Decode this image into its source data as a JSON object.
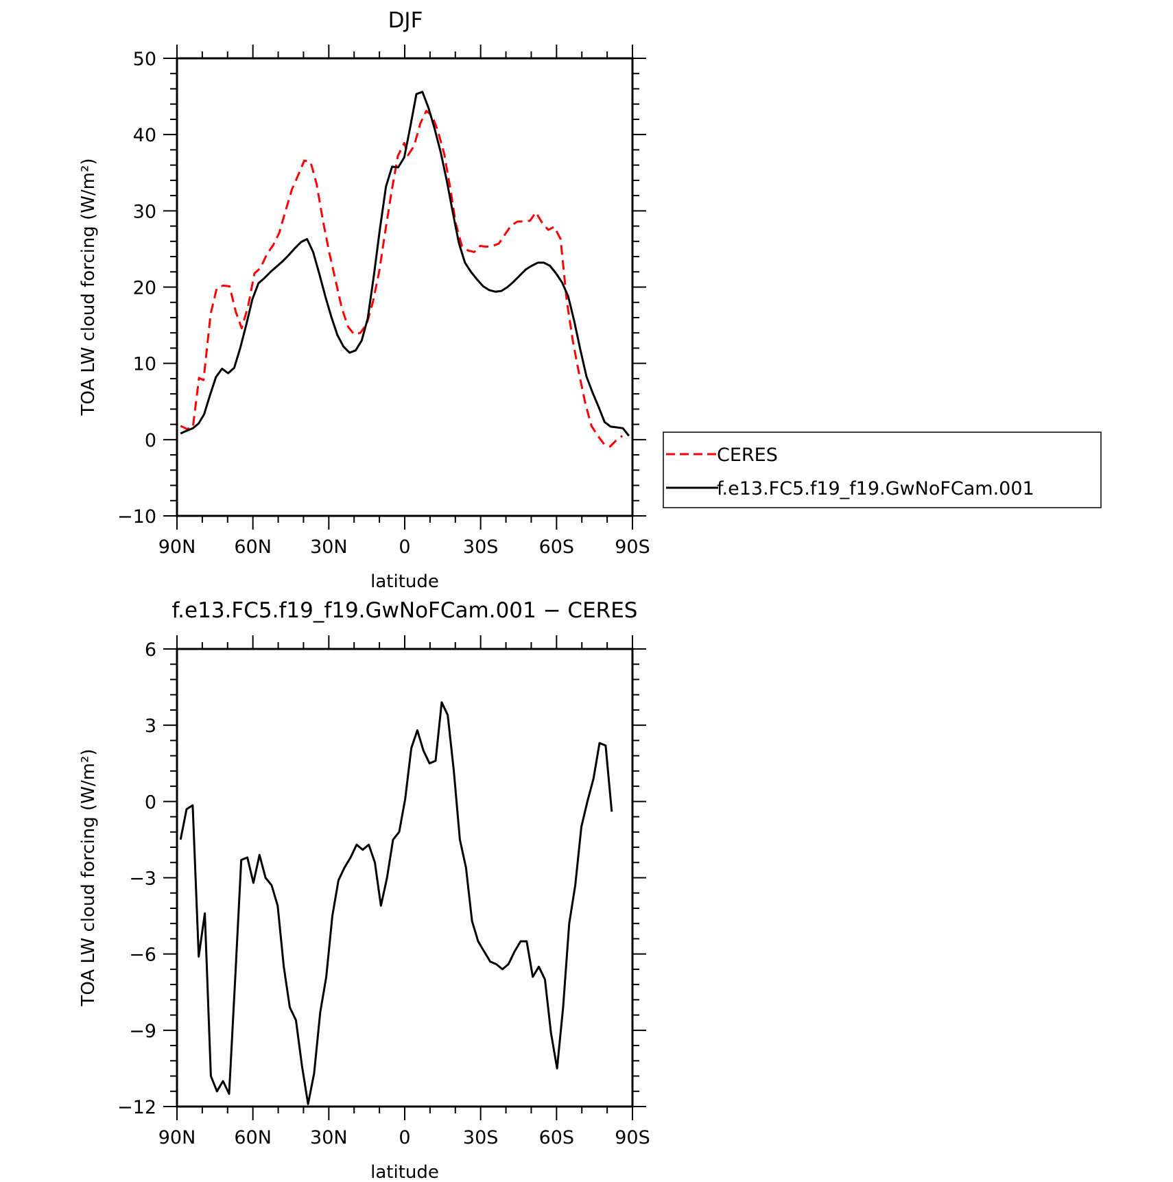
{
  "chart_data": [
    {
      "type": "line",
      "title": "DJF",
      "xlabel": "latitude",
      "ylabel": "TOA LW cloud forcing (W/m²)",
      "xlim": [
        90,
        -90
      ],
      "ylim": [
        -10,
        50
      ],
      "x_ticks": [
        90,
        60,
        30,
        0,
        -30,
        -60,
        -90
      ],
      "x_tick_labels": [
        "90N",
        "60N",
        "30N",
        "0",
        "30S",
        "60S",
        "90S"
      ],
      "y_ticks": [
        -10,
        0,
        10,
        20,
        30,
        40,
        50
      ],
      "y_tick_labels": [
        "−10",
        "0",
        "10",
        "20",
        "30",
        "40",
        "50"
      ],
      "grid": false,
      "legend": "right",
      "series": [
        {
          "name": "CERES",
          "style": "dashed",
          "color": "#ff0000",
          "points": [
            [
              88.6,
              1.8
            ],
            [
              86.1,
              1.4
            ],
            [
              83.7,
              1.6
            ],
            [
              81.3,
              8.1
            ],
            [
              79.5,
              7.8
            ],
            [
              76.7,
              16.5
            ],
            [
              74.3,
              19.8
            ],
            [
              71.8,
              20.2
            ],
            [
              69.2,
              20.1
            ],
            [
              66.8,
              16.8
            ],
            [
              64.4,
              14.6
            ],
            [
              61.9,
              17.5
            ],
            [
              59.4,
              21.8
            ],
            [
              57.0,
              22.5
            ],
            [
              54.5,
              24.3
            ],
            [
              52.0,
              25.5
            ],
            [
              49.6,
              27.1
            ],
            [
              47.1,
              30.0
            ],
            [
              44.6,
              32.8
            ],
            [
              42.2,
              34.6
            ],
            [
              39.7,
              36.6
            ],
            [
              37.2,
              36.4
            ],
            [
              34.8,
              33.5
            ],
            [
              32.3,
              28.7
            ],
            [
              29.8,
              24.5
            ],
            [
              27.4,
              21.0
            ],
            [
              24.9,
              17.3
            ],
            [
              22.4,
              14.8
            ],
            [
              20.0,
              13.8
            ],
            [
              17.5,
              14.0
            ],
            [
              15.0,
              15.2
            ],
            [
              12.6,
              18.0
            ],
            [
              10.1,
              22.0
            ],
            [
              7.6,
              27.5
            ],
            [
              5.2,
              32.5
            ],
            [
              2.7,
              37.2
            ],
            [
              0.2,
              38.9
            ],
            [
              -1.3,
              37.3
            ],
            [
              -3.7,
              38.5
            ],
            [
              -6.2,
              41.5
            ],
            [
              -8.5,
              43.1
            ],
            [
              -10.8,
              42.5
            ],
            [
              -13.1,
              40.5
            ],
            [
              -15.6,
              37.5
            ],
            [
              -18.0,
              33.0
            ],
            [
              -20.2,
              28.3
            ],
            [
              -22.6,
              25.4
            ],
            [
              -25.0,
              24.8
            ],
            [
              -27.5,
              24.6
            ],
            [
              -29.8,
              25.4
            ],
            [
              -32.2,
              25.3
            ],
            [
              -34.7,
              25.4
            ],
            [
              -37.2,
              25.7
            ],
            [
              -39.6,
              26.9
            ],
            [
              -42.1,
              28.1
            ],
            [
              -44.6,
              28.6
            ],
            [
              -47.0,
              28.6
            ],
            [
              -49.5,
              28.7
            ],
            [
              -51.8,
              29.8
            ],
            [
              -54.2,
              28.5
            ],
            [
              -56.7,
              27.5
            ],
            [
              -59.1,
              27.9
            ],
            [
              -61.6,
              26.3
            ],
            [
              -64.0,
              18.3
            ],
            [
              -66.5,
              12.8
            ],
            [
              -69.0,
              8.5
            ],
            [
              -71.4,
              4.7
            ],
            [
              -73.8,
              1.8
            ],
            [
              -76.3,
              0.5
            ],
            [
              -78.8,
              -0.6
            ],
            [
              -81.2,
              -0.9
            ],
            [
              -83.6,
              -0.1
            ],
            [
              -86.0,
              0.5
            ]
          ]
        },
        {
          "name": "f.e13.FC5.f19_f19.GwNoFCam.001",
          "style": "solid",
          "color": "#000000",
          "points": [
            [
              88.6,
              0.8
            ],
            [
              85.9,
              1.2
            ],
            [
              83.7,
              1.5
            ],
            [
              81.5,
              2.1
            ],
            [
              79.3,
              3.3
            ],
            [
              77.0,
              5.8
            ],
            [
              74.6,
              8.2
            ],
            [
              72.2,
              9.3
            ],
            [
              69.8,
              8.7
            ],
            [
              67.4,
              9.4
            ],
            [
              65.0,
              12.0
            ],
            [
              62.6,
              15.1
            ],
            [
              60.2,
              18.4
            ],
            [
              57.8,
              20.5
            ],
            [
              55.4,
              21.2
            ],
            [
              53.0,
              22.0
            ],
            [
              50.6,
              22.7
            ],
            [
              48.2,
              23.4
            ],
            [
              45.8,
              24.2
            ],
            [
              43.4,
              25.1
            ],
            [
              41.0,
              25.9
            ],
            [
              38.6,
              26.3
            ],
            [
              36.2,
              24.6
            ],
            [
              33.8,
              21.8
            ],
            [
              31.4,
              18.8
            ],
            [
              29.0,
              16.1
            ],
            [
              26.6,
              13.7
            ],
            [
              24.2,
              12.2
            ],
            [
              21.8,
              11.4
            ],
            [
              19.4,
              11.7
            ],
            [
              17.0,
              13.0
            ],
            [
              14.6,
              15.9
            ],
            [
              12.2,
              21.5
            ],
            [
              9.8,
              27.6
            ],
            [
              7.4,
              33.2
            ],
            [
              5.0,
              35.8
            ],
            [
              2.6,
              35.7
            ],
            [
              0.2,
              37.0
            ],
            [
              -2.2,
              41.0
            ],
            [
              -4.6,
              45.3
            ],
            [
              -7.0,
              45.6
            ],
            [
              -9.4,
              43.5
            ],
            [
              -11.8,
              40.8
            ],
            [
              -14.2,
              37.7
            ],
            [
              -16.6,
              34.0
            ],
            [
              -19.0,
              29.8
            ],
            [
              -21.4,
              25.8
            ],
            [
              -23.8,
              23.2
            ],
            [
              -26.2,
              22.0
            ],
            [
              -28.6,
              21.0
            ],
            [
              -31.0,
              20.1
            ],
            [
              -33.4,
              19.6
            ],
            [
              -35.8,
              19.4
            ],
            [
              -38.2,
              19.5
            ],
            [
              -40.6,
              20.0
            ],
            [
              -43.0,
              20.7
            ],
            [
              -45.4,
              21.5
            ],
            [
              -47.8,
              22.3
            ],
            [
              -50.2,
              22.8
            ],
            [
              -52.6,
              23.2
            ],
            [
              -55.0,
              23.2
            ],
            [
              -57.4,
              22.8
            ],
            [
              -59.8,
              21.8
            ],
            [
              -62.2,
              20.6
            ],
            [
              -64.6,
              18.8
            ],
            [
              -67.0,
              15.5
            ],
            [
              -69.4,
              11.8
            ],
            [
              -71.8,
              8.3
            ],
            [
              -74.2,
              6.2
            ],
            [
              -76.6,
              4.3
            ],
            [
              -79.0,
              2.3
            ],
            [
              -81.4,
              1.7
            ],
            [
              -83.8,
              1.6
            ],
            [
              -86.2,
              1.5
            ],
            [
              -88.6,
              0.5
            ]
          ]
        }
      ]
    },
    {
      "type": "line",
      "title": "f.e13.FC5.f19_f19.GwNoFCam.001 − CERES",
      "xlabel": "latitude",
      "ylabel": "TOA LW cloud forcing (W/m²)",
      "xlim": [
        90,
        -90
      ],
      "ylim": [
        -12,
        6
      ],
      "x_ticks": [
        90,
        60,
        30,
        0,
        -30,
        -60,
        -90
      ],
      "x_tick_labels": [
        "90N",
        "60N",
        "30N",
        "0",
        "30S",
        "60S",
        "90S"
      ],
      "y_ticks": [
        -12,
        -9,
        -6,
        -3,
        0,
        3,
        6
      ],
      "y_tick_labels": [
        "−12",
        "−9",
        "−6",
        "−3",
        "0",
        "3",
        "6"
      ],
      "grid": false,
      "series": [
        {
          "style": "solid",
          "color": "#000000",
          "points": [
            [
              88.6,
              -1.5
            ],
            [
              86.2,
              -0.3
            ],
            [
              83.8,
              -0.15
            ],
            [
              81.4,
              -6.1
            ],
            [
              79.0,
              -4.4
            ],
            [
              76.6,
              -10.8
            ],
            [
              74.2,
              -11.4
            ],
            [
              71.8,
              -11.0
            ],
            [
              69.4,
              -11.5
            ],
            [
              67.0,
              -7.0
            ],
            [
              64.6,
              -2.3
            ],
            [
              62.2,
              -2.2
            ],
            [
              59.8,
              -3.2
            ],
            [
              57.4,
              -2.1
            ],
            [
              55.0,
              -3.0
            ],
            [
              52.6,
              -3.3
            ],
            [
              50.2,
              -4.1
            ],
            [
              47.8,
              -6.5
            ],
            [
              45.4,
              -8.1
            ],
            [
              43.0,
              -8.6
            ],
            [
              40.6,
              -10.4
            ],
            [
              38.2,
              -11.9
            ],
            [
              35.8,
              -10.7
            ],
            [
              33.4,
              -8.3
            ],
            [
              31.0,
              -6.9
            ],
            [
              28.6,
              -4.5
            ],
            [
              26.2,
              -3.1
            ],
            [
              23.8,
              -2.6
            ],
            [
              21.4,
              -2.2
            ],
            [
              19.0,
              -1.7
            ],
            [
              16.6,
              -1.9
            ],
            [
              14.2,
              -1.7
            ],
            [
              11.8,
              -2.4
            ],
            [
              9.4,
              -4.1
            ],
            [
              7.0,
              -3.0
            ],
            [
              4.6,
              -1.5
            ],
            [
              2.2,
              -1.2
            ],
            [
              -0.2,
              0.1
            ],
            [
              -2.6,
              2.1
            ],
            [
              -5.0,
              2.8
            ],
            [
              -7.4,
              2.0
            ],
            [
              -9.8,
              1.5
            ],
            [
              -12.2,
              1.6
            ],
            [
              -14.6,
              3.9
            ],
            [
              -17.0,
              3.4
            ],
            [
              -19.4,
              1.2
            ],
            [
              -21.8,
              -1.5
            ],
            [
              -24.2,
              -2.6
            ],
            [
              -26.6,
              -4.7
            ],
            [
              -29.0,
              -5.5
            ],
            [
              -31.4,
              -5.9
            ],
            [
              -33.8,
              -6.3
            ],
            [
              -36.2,
              -6.4
            ],
            [
              -38.6,
              -6.6
            ],
            [
              -41.0,
              -6.4
            ],
            [
              -43.4,
              -5.9
            ],
            [
              -45.8,
              -5.5
            ],
            [
              -48.2,
              -5.5
            ],
            [
              -50.6,
              -6.9
            ],
            [
              -53.0,
              -6.5
            ],
            [
              -55.4,
              -7.0
            ],
            [
              -57.8,
              -9.1
            ],
            [
              -60.2,
              -10.5
            ],
            [
              -62.6,
              -8.1
            ],
            [
              -65.0,
              -4.8
            ],
            [
              -67.4,
              -3.3
            ],
            [
              -69.8,
              -1.0
            ],
            [
              -72.2,
              0.0
            ],
            [
              -74.6,
              0.9
            ],
            [
              -77.0,
              2.3
            ],
            [
              -79.4,
              2.2
            ],
            [
              -81.8,
              -0.4
            ]
          ]
        }
      ]
    }
  ]
}
